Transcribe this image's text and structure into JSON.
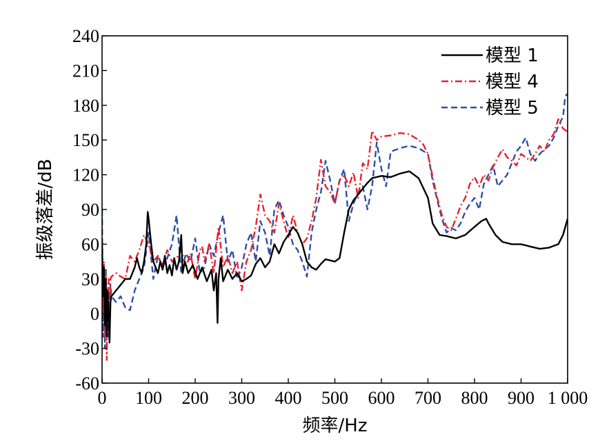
{
  "chart_data": {
    "type": "line",
    "xlabel": "频率/Hz",
    "ylabel": "振级落差/dB",
    "xlim": [
      0,
      1000
    ],
    "ylim": [
      -60,
      240
    ],
    "x_ticks": [
      0,
      100,
      200,
      300,
      400,
      500,
      600,
      700,
      800,
      900,
      1000
    ],
    "x_tick_labels": [
      "0",
      "100",
      "200",
      "300",
      "400",
      "500",
      "600",
      "700",
      "800",
      "900",
      "1 000"
    ],
    "y_ticks": [
      -60,
      -30,
      0,
      30,
      60,
      90,
      120,
      150,
      180,
      210,
      240
    ],
    "y_tick_labels": [
      "-60",
      "-30",
      "0",
      "30",
      "60",
      "90",
      "120",
      "150",
      "180",
      "210",
      "240"
    ],
    "grid": false,
    "legend": {
      "placement": "top-right"
    },
    "series": [
      {
        "name": "模型 1",
        "color": "#000000",
        "dash": "solid",
        "points": [
          [
            0,
            60
          ],
          [
            2,
            15
          ],
          [
            4,
            40
          ],
          [
            6,
            -10
          ],
          [
            8,
            30
          ],
          [
            10,
            -20
          ],
          [
            12,
            20
          ],
          [
            14,
            0
          ],
          [
            16,
            -25
          ],
          [
            18,
            10
          ],
          [
            20,
            15
          ],
          [
            30,
            20
          ],
          [
            40,
            25
          ],
          [
            50,
            30
          ],
          [
            60,
            30
          ],
          [
            70,
            40
          ],
          [
            75,
            48
          ],
          [
            80,
            40
          ],
          [
            85,
            35
          ],
          [
            90,
            45
          ],
          [
            95,
            60
          ],
          [
            98,
            88
          ],
          [
            100,
            82
          ],
          [
            103,
            70
          ],
          [
            106,
            58
          ],
          [
            110,
            45
          ],
          [
            115,
            40
          ],
          [
            120,
            35
          ],
          [
            125,
            45
          ],
          [
            130,
            38
          ],
          [
            135,
            50
          ],
          [
            140,
            35
          ],
          [
            145,
            42
          ],
          [
            150,
            33
          ],
          [
            155,
            48
          ],
          [
            160,
            38
          ],
          [
            165,
            45
          ],
          [
            170,
            68
          ],
          [
            173,
            35
          ],
          [
            178,
            45
          ],
          [
            185,
            35
          ],
          [
            195,
            42
          ],
          [
            205,
            30
          ],
          [
            215,
            40
          ],
          [
            225,
            28
          ],
          [
            235,
            38
          ],
          [
            240,
            20
          ],
          [
            245,
            35
          ],
          [
            248,
            -8
          ],
          [
            250,
            30
          ],
          [
            255,
            48
          ],
          [
            260,
            28
          ],
          [
            270,
            38
          ],
          [
            280,
            30
          ],
          [
            290,
            35
          ],
          [
            300,
            28
          ],
          [
            310,
            30
          ],
          [
            320,
            33
          ],
          [
            330,
            43
          ],
          [
            340,
            48
          ],
          [
            350,
            40
          ],
          [
            360,
            45
          ],
          [
            370,
            60
          ],
          [
            380,
            52
          ],
          [
            390,
            62
          ],
          [
            400,
            68
          ],
          [
            410,
            75
          ],
          [
            420,
            70
          ],
          [
            430,
            60
          ],
          [
            440,
            45
          ],
          [
            450,
            40
          ],
          [
            460,
            38
          ],
          [
            470,
            43
          ],
          [
            480,
            47
          ],
          [
            490,
            46
          ],
          [
            500,
            45
          ],
          [
            510,
            48
          ],
          [
            520,
            70
          ],
          [
            530,
            90
          ],
          [
            540,
            98
          ],
          [
            550,
            103
          ],
          [
            560,
            108
          ],
          [
            570,
            113
          ],
          [
            580,
            117
          ],
          [
            600,
            119
          ],
          [
            620,
            118
          ],
          [
            640,
            121
          ],
          [
            660,
            123
          ],
          [
            680,
            117
          ],
          [
            700,
            100
          ],
          [
            710,
            78
          ],
          [
            725,
            68
          ],
          [
            740,
            67
          ],
          [
            760,
            65
          ],
          [
            780,
            68
          ],
          [
            800,
            75
          ],
          [
            815,
            80
          ],
          [
            825,
            82
          ],
          [
            830,
            78
          ],
          [
            845,
            68
          ],
          [
            860,
            62
          ],
          [
            880,
            60
          ],
          [
            900,
            60
          ],
          [
            920,
            58
          ],
          [
            940,
            56
          ],
          [
            960,
            57
          ],
          [
            980,
            60
          ],
          [
            990,
            68
          ],
          [
            1000,
            82
          ]
        ]
      },
      {
        "name": "模型 4",
        "color": "#e8212b",
        "dash": "dashdot",
        "points": [
          [
            0,
            60
          ],
          [
            2,
            0
          ],
          [
            4,
            45
          ],
          [
            6,
            -20
          ],
          [
            8,
            35
          ],
          [
            10,
            -40
          ],
          [
            12,
            15
          ],
          [
            14,
            30
          ],
          [
            16,
            0
          ],
          [
            18,
            30
          ],
          [
            20,
            32
          ],
          [
            30,
            35
          ],
          [
            40,
            32
          ],
          [
            50,
            30
          ],
          [
            60,
            50
          ],
          [
            70,
            45
          ],
          [
            80,
            55
          ],
          [
            90,
            68
          ],
          [
            100,
            60
          ],
          [
            110,
            45
          ],
          [
            120,
            50
          ],
          [
            130,
            42
          ],
          [
            140,
            55
          ],
          [
            150,
            45
          ],
          [
            160,
            48
          ],
          [
            170,
            55
          ],
          [
            180,
            40
          ],
          [
            190,
            52
          ],
          [
            200,
            30
          ],
          [
            210,
            55
          ],
          [
            215,
            58
          ],
          [
            220,
            45
          ],
          [
            230,
            60
          ],
          [
            240,
            35
          ],
          [
            250,
            75
          ],
          [
            260,
            40
          ],
          [
            270,
            50
          ],
          [
            280,
            35
          ],
          [
            290,
            45
          ],
          [
            300,
            20
          ],
          [
            310,
            45
          ],
          [
            320,
            55
          ],
          [
            330,
            75
          ],
          [
            340,
            103
          ],
          [
            350,
            85
          ],
          [
            360,
            80
          ],
          [
            370,
            70
          ],
          [
            380,
            95
          ],
          [
            390,
            80
          ],
          [
            400,
            65
          ],
          [
            410,
            85
          ],
          [
            420,
            70
          ],
          [
            430,
            60
          ],
          [
            440,
            65
          ],
          [
            450,
            80
          ],
          [
            460,
            100
          ],
          [
            470,
            133
          ],
          [
            480,
            110
          ],
          [
            490,
            105
          ],
          [
            500,
            95
          ],
          [
            510,
            115
          ],
          [
            520,
            120
          ],
          [
            530,
            110
          ],
          [
            540,
            122
          ],
          [
            550,
            100
          ],
          [
            560,
            130
          ],
          [
            570,
            125
          ],
          [
            580,
            158
          ],
          [
            590,
            150
          ],
          [
            600,
            153
          ],
          [
            620,
            154
          ],
          [
            640,
            156
          ],
          [
            660,
            155
          ],
          [
            680,
            150
          ],
          [
            690,
            146
          ],
          [
            700,
            138
          ],
          [
            710,
            118
          ],
          [
            720,
            100
          ],
          [
            730,
            85
          ],
          [
            740,
            75
          ],
          [
            750,
            72
          ],
          [
            760,
            82
          ],
          [
            770,
            93
          ],
          [
            780,
            100
          ],
          [
            790,
            112
          ],
          [
            800,
            118
          ],
          [
            810,
            110
          ],
          [
            820,
            120
          ],
          [
            830,
            115
          ],
          [
            840,
            127
          ],
          [
            850,
            135
          ],
          [
            860,
            142
          ],
          [
            870,
            135
          ],
          [
            880,
            132
          ],
          [
            890,
            128
          ],
          [
            900,
            138
          ],
          [
            910,
            135
          ],
          [
            920,
            132
          ],
          [
            930,
            138
          ],
          [
            940,
            145
          ],
          [
            950,
            140
          ],
          [
            960,
            150
          ],
          [
            970,
            155
          ],
          [
            980,
            168
          ],
          [
            990,
            160
          ],
          [
            1000,
            157
          ]
        ]
      },
      {
        "name": "模型 5",
        "color": "#2e4fa3",
        "dash": "dashed",
        "points": [
          [
            0,
            90
          ],
          [
            2,
            -20
          ],
          [
            4,
            30
          ],
          [
            6,
            -30
          ],
          [
            8,
            40
          ],
          [
            10,
            -10
          ],
          [
            12,
            20
          ],
          [
            14,
            -20
          ],
          [
            16,
            5
          ],
          [
            18,
            25
          ],
          [
            20,
            15
          ],
          [
            30,
            10
          ],
          [
            40,
            15
          ],
          [
            50,
            5
          ],
          [
            60,
            3
          ],
          [
            70,
            20
          ],
          [
            80,
            30
          ],
          [
            90,
            40
          ],
          [
            100,
            70
          ],
          [
            110,
            30
          ],
          [
            120,
            50
          ],
          [
            130,
            40
          ],
          [
            140,
            48
          ],
          [
            150,
            60
          ],
          [
            160,
            85
          ],
          [
            170,
            35
          ],
          [
            180,
            52
          ],
          [
            190,
            45
          ],
          [
            200,
            65
          ],
          [
            210,
            35
          ],
          [
            220,
            40
          ],
          [
            230,
            60
          ],
          [
            240,
            50
          ],
          [
            250,
            70
          ],
          [
            260,
            85
          ],
          [
            270,
            45
          ],
          [
            280,
            55
          ],
          [
            290,
            30
          ],
          [
            300,
            40
          ],
          [
            310,
            60
          ],
          [
            320,
            70
          ],
          [
            330,
            45
          ],
          [
            340,
            80
          ],
          [
            350,
            70
          ],
          [
            360,
            50
          ],
          [
            370,
            90
          ],
          [
            380,
            98
          ],
          [
            390,
            85
          ],
          [
            400,
            75
          ],
          [
            410,
            60
          ],
          [
            420,
            55
          ],
          [
            430,
            45
          ],
          [
            440,
            32
          ],
          [
            450,
            70
          ],
          [
            460,
            90
          ],
          [
            470,
            105
          ],
          [
            480,
            132
          ],
          [
            490,
            115
          ],
          [
            500,
            95
          ],
          [
            510,
            115
          ],
          [
            520,
            125
          ],
          [
            530,
            80
          ],
          [
            540,
            95
          ],
          [
            550,
            105
          ],
          [
            560,
            110
          ],
          [
            570,
            90
          ],
          [
            580,
            110
          ],
          [
            590,
            148
          ],
          [
            600,
            125
          ],
          [
            610,
            110
          ],
          [
            620,
            140
          ],
          [
            640,
            143
          ],
          [
            660,
            145
          ],
          [
            680,
            143
          ],
          [
            700,
            138
          ],
          [
            710,
            115
          ],
          [
            720,
            98
          ],
          [
            730,
            82
          ],
          [
            740,
            70
          ],
          [
            750,
            74
          ],
          [
            760,
            72
          ],
          [
            770,
            78
          ],
          [
            780,
            88
          ],
          [
            790,
            95
          ],
          [
            800,
            100
          ],
          [
            810,
            90
          ],
          [
            820,
            112
          ],
          [
            830,
            120
          ],
          [
            840,
            128
          ],
          [
            850,
            110
          ],
          [
            860,
            115
          ],
          [
            870,
            120
          ],
          [
            880,
            130
          ],
          [
            890,
            140
          ],
          [
            900,
            145
          ],
          [
            910,
            152
          ],
          [
            920,
            138
          ],
          [
            930,
            132
          ],
          [
            940,
            138
          ],
          [
            950,
            142
          ],
          [
            960,
            145
          ],
          [
            970,
            152
          ],
          [
            980,
            162
          ],
          [
            990,
            170
          ],
          [
            995,
            188
          ],
          [
            1000,
            190
          ]
        ]
      }
    ]
  }
}
